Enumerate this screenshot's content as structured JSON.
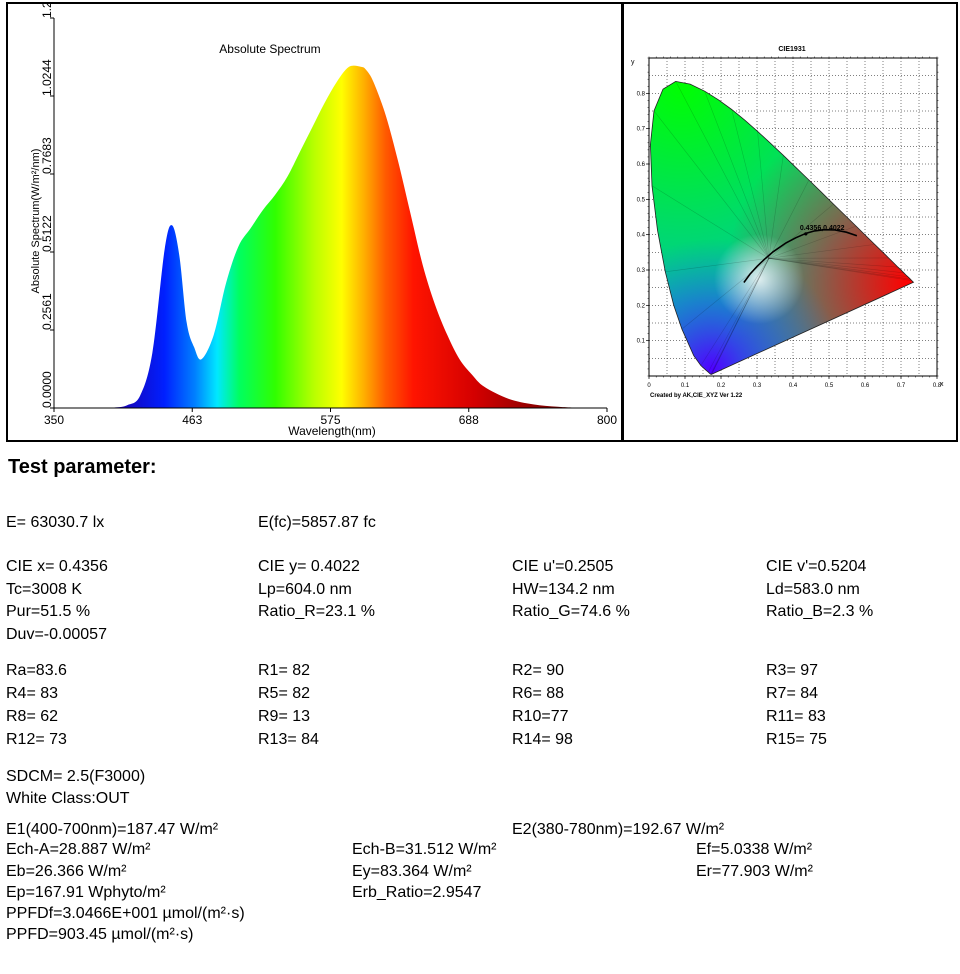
{
  "spectrum_chart": {
    "title": "Absolute Spectrum",
    "xlabel": "Wavelength(nm)",
    "ylabel": "Absolute Spectrum(W/m²/nm)",
    "xticks": [
      "350",
      "463",
      "575",
      "688",
      "800"
    ],
    "yticks": [
      "0.0000",
      "0.2561",
      "0.5122",
      "0.7683",
      "1.0244",
      "1.2805"
    ]
  },
  "cie_chart": {
    "title": "CIE1931",
    "axis_y": "y",
    "axis_x": "x",
    "point_label": "0.4356,0.4022",
    "footer": "Created by AK,CIE_XYZ Ver 1.22",
    "xticks": [
      "0",
      "0.1",
      "0.2",
      "0.3",
      "0.4",
      "0.5",
      "0.6",
      "0.7",
      "0.8"
    ],
    "yticks": [
      "0.1",
      "0.2",
      "0.3",
      "0.4",
      "0.5",
      "0.6",
      "0.7",
      "0.8"
    ]
  },
  "chart_data": [
    {
      "type": "area",
      "title": "Absolute Spectrum",
      "xlabel": "Wavelength(nm)",
      "ylabel": "Absolute Spectrum(W/m²/nm)",
      "xlim": [
        350,
        800
      ],
      "ylim": [
        0,
        1.2805
      ],
      "x": [
        380,
        400,
        410,
        420,
        430,
        440,
        446,
        452,
        458,
        464,
        470,
        480,
        490,
        500,
        510,
        520,
        530,
        540,
        550,
        560,
        570,
        580,
        590,
        600,
        604,
        610,
        620,
        630,
        640,
        650,
        660,
        670,
        680,
        690,
        700,
        720,
        740,
        760,
        780
      ],
      "y": [
        0.0,
        0.002,
        0.01,
        0.04,
        0.18,
        0.52,
        0.6,
        0.5,
        0.28,
        0.2,
        0.16,
        0.24,
        0.41,
        0.53,
        0.59,
        0.65,
        0.7,
        0.76,
        0.84,
        0.92,
        1.0,
        1.07,
        1.12,
        1.12,
        1.11,
        1.07,
        0.96,
        0.81,
        0.64,
        0.47,
        0.34,
        0.24,
        0.16,
        0.11,
        0.07,
        0.03,
        0.012,
        0.004,
        0.0
      ]
    },
    {
      "type": "scatter",
      "title": "CIE1931",
      "xlabel": "x",
      "ylabel": "y",
      "xlim": [
        0,
        0.8
      ],
      "ylim": [
        0,
        0.9
      ],
      "points": [
        {
          "label": "0.4356,0.4022",
          "x": 0.4356,
          "y": 0.4022
        }
      ]
    }
  ],
  "params": {
    "heading": "Test parameter:",
    "E": "E=  63030.7 lx",
    "Efc": "E(fc)=5857.87 fc",
    "cie_x": "CIE x= 0.4356",
    "cie_y": "CIE y= 0.4022",
    "cie_u": "CIE u'=0.2505",
    "cie_v": "CIE v'=0.5204",
    "tc": "Tc=3008 K",
    "lp": "Lp=604.0 nm",
    "hw": "HW=134.2 nm",
    "ld": "Ld=583.0 nm",
    "pur": "Pur=51.5 %",
    "ratio_r": "Ratio_R=23.1 %",
    "ratio_g": "Ratio_G=74.6 %",
    "ratio_b": "Ratio_B=2.3 %",
    "duv": "Duv=-0.00057",
    "ra": "Ra=83.6",
    "r1": "R1= 82",
    "r2": "R2= 90",
    "r3": "R3= 97",
    "r4": "R4= 83",
    "r5": "R5= 82",
    "r6": "R6= 88",
    "r7": "R7= 84",
    "r8": "R8= 62",
    "r9": "R9= 13",
    "r10": "R10=77",
    "r11": "R11= 83",
    "r12": "R12= 73",
    "r13": "R13= 84",
    "r14": "R14= 98",
    "r15": "R15= 75",
    "sdcm": "SDCM= 2.5(F3000)",
    "white_class": "White Class:OUT",
    "e1": "E1(400-700nm)=187.47 W/m²",
    "e2": "E2(380-780nm)=192.67 W/m²",
    "ech_a": "Ech-A=28.887 W/m²",
    "ech_b": "Ech-B=31.512 W/m²",
    "ef": "Ef=5.0338 W/m²",
    "eb": "Eb=26.366 W/m²",
    "ey": "Ey=83.364 W/m²",
    "er": "Er=77.903 W/m²",
    "ep": "Ep=167.91 Wphyto/m²",
    "erb": "Erb_Ratio=2.9547",
    "ppfdf": "PPFDf=3.0466E+001 µmol/(m²·s)",
    "ppfd": "PPFD=903.45 µmol/(m²·s)"
  }
}
